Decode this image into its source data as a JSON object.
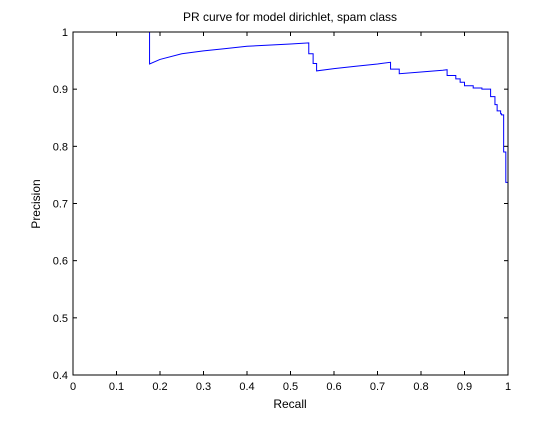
{
  "chart_data": {
    "type": "line",
    "title": "PR curve for model dirichlet, spam class",
    "xlabel": "Recall",
    "ylabel": "Precision",
    "xlim": [
      0,
      1
    ],
    "ylim": [
      0.4,
      1
    ],
    "xticks": [
      0,
      0.1,
      0.2,
      0.3,
      0.4,
      0.5,
      0.6,
      0.7,
      0.8,
      0.9,
      1
    ],
    "xtick_labels": [
      "0",
      "0.1",
      "0.2",
      "0.3",
      "0.4",
      "0.5",
      "0.6",
      "0.7",
      "0.8",
      "0.9",
      "1"
    ],
    "yticks": [
      0.4,
      0.5,
      0.6,
      0.7,
      0.8,
      0.9,
      1
    ],
    "ytick_labels": [
      "0.4",
      "0.5",
      "0.6",
      "0.7",
      "0.8",
      "0.9",
      "1"
    ],
    "grid": false,
    "series": [
      {
        "color": "#0000ff",
        "x": [
          0.176,
          0.176,
          0.2,
          0.25,
          0.3,
          0.35,
          0.4,
          0.45,
          0.5,
          0.542,
          0.542,
          0.548,
          0.552,
          0.552,
          0.56,
          0.56,
          0.6,
          0.65,
          0.7,
          0.73,
          0.73,
          0.75,
          0.75,
          0.8,
          0.85,
          0.86,
          0.86,
          0.88,
          0.88,
          0.89,
          0.89,
          0.9,
          0.9,
          0.92,
          0.92,
          0.94,
          0.94,
          0.96,
          0.96,
          0.97,
          0.97,
          0.975,
          0.975,
          0.983,
          0.983,
          0.985,
          0.985,
          0.99,
          0.99,
          0.995,
          0.995,
          1.0
        ],
        "y": [
          1.0,
          0.944,
          0.952,
          0.962,
          0.967,
          0.971,
          0.975,
          0.977,
          0.979,
          0.981,
          0.962,
          0.962,
          0.962,
          0.945,
          0.945,
          0.932,
          0.936,
          0.94,
          0.944,
          0.947,
          0.935,
          0.935,
          0.927,
          0.93,
          0.933,
          0.934,
          0.924,
          0.924,
          0.918,
          0.918,
          0.912,
          0.912,
          0.906,
          0.906,
          0.902,
          0.902,
          0.9,
          0.9,
          0.887,
          0.887,
          0.873,
          0.873,
          0.862,
          0.862,
          0.857,
          0.857,
          0.855,
          0.855,
          0.79,
          0.79,
          0.737,
          0.737
        ]
      }
    ]
  }
}
